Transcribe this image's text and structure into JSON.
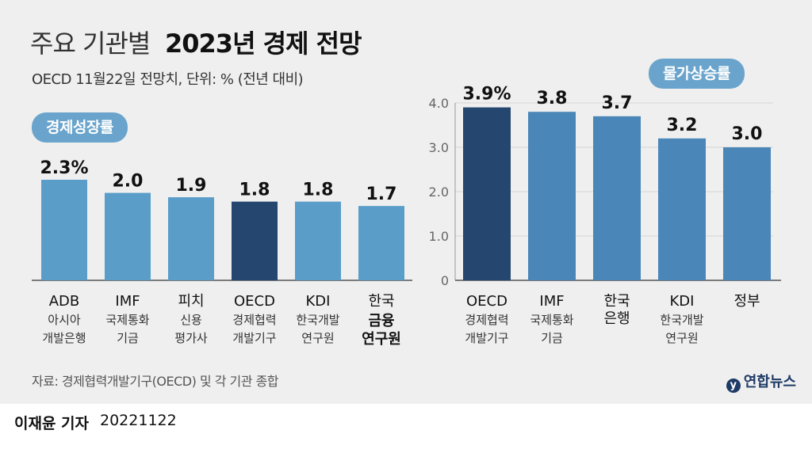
{
  "title": {
    "light": "주요 기관별",
    "bold": "2023년 경제 전망"
  },
  "subtitle": "OECD 11월22일 전망치, 단위: % (전년 대비)",
  "source": "자료: 경제협력개발기구(OECD) 및 각 기관 종합",
  "logo": "연합뉴스",
  "byline": "이재윤 기자",
  "date": "20221122",
  "colors": {
    "bar_light": "#5a9dc8",
    "bar_mid": "#4a86b8",
    "bar_dark": "#24466f",
    "pill": "#6aa4cc"
  },
  "chart_data": [
    {
      "type": "bar",
      "title": "경제성장률",
      "categories": [
        "ADB",
        "IMF",
        "피치",
        "OECD",
        "KDI",
        "한국"
      ],
      "sublabels": [
        "아시아 개발은행",
        "국제통화 기금",
        "신용 평가사",
        "경제협력 개발기구",
        "한국개발 연구원",
        "금융 연구원"
      ],
      "values": [
        2.3,
        2.0,
        1.9,
        1.8,
        1.8,
        1.7
      ],
      "value_labels": [
        "2.3%",
        "2.0",
        "1.9",
        "1.8",
        "1.8",
        "1.7"
      ],
      "highlight_index": 3,
      "ylim": [
        0,
        2.3
      ]
    },
    {
      "type": "bar",
      "title": "물가상승률",
      "categories": [
        "OECD",
        "IMF",
        "한국 은행",
        "KDI",
        "정부"
      ],
      "sublabels": [
        "경제협력 개발기구",
        "국제통화 기금",
        "",
        "한국개발 연구원",
        ""
      ],
      "values": [
        3.9,
        3.8,
        3.7,
        3.2,
        3.0
      ],
      "value_labels": [
        "3.9%",
        "3.8",
        "3.7",
        "3.2",
        "3.0"
      ],
      "highlight_index": 0,
      "yticks": [
        "4.0",
        "3.0",
        "2.0",
        "1.0",
        "0"
      ],
      "ylim": [
        0,
        4.0
      ],
      "grid": true
    }
  ]
}
